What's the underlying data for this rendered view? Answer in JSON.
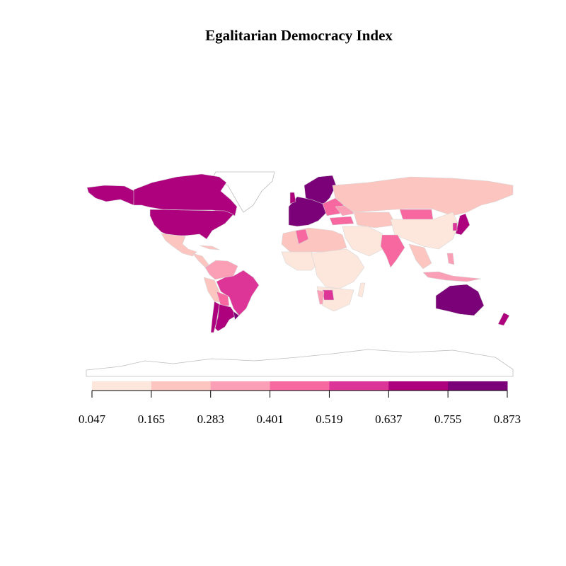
{
  "title": "Egalitarian Democracy Index",
  "legend": {
    "breaks": [
      "0.047",
      "0.165",
      "0.283",
      "0.401",
      "0.519",
      "0.637",
      "0.755",
      "0.873"
    ],
    "colors": [
      "#fde7dc",
      "#fcc5c0",
      "#fa9fb5",
      "#f768a1",
      "#dd3497",
      "#ae017e",
      "#7a0177"
    ]
  },
  "palette": {
    "no_data": "#ffffff",
    "border": "#cfcfcf"
  }
}
